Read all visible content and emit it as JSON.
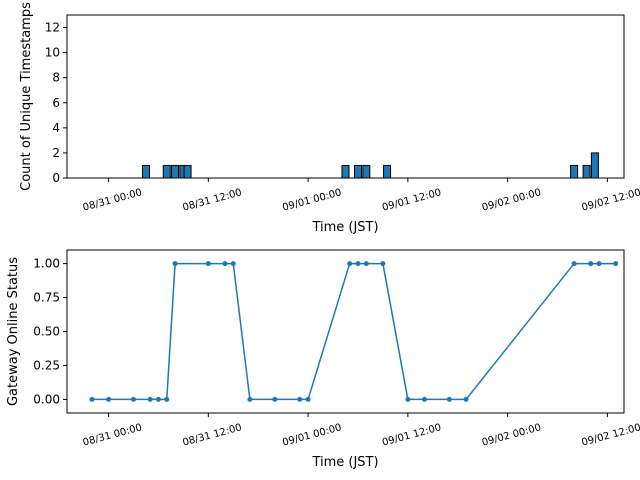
{
  "chart_data": [
    {
      "type": "bar",
      "title": "",
      "xlabel": "Time (JST)",
      "ylabel": "Count of Unique Timestamps",
      "ylim": [
        0,
        13
      ],
      "yticks": [
        "0",
        "2",
        "4",
        "6",
        "8",
        "10",
        "12"
      ],
      "xticks": [
        "08/31 00:00",
        "08/31 12:00",
        "09/01 00:00",
        "09/01 12:00",
        "09/02 00:00",
        "09/02 12:00"
      ],
      "xlim": [
        "2025-08-30 19:00",
        "2025-09-02 14:00"
      ],
      "bar_color": "#1f77b4",
      "bar_edge_color": "#000000",
      "bars": [
        {
          "x": "2025-08-31 04:30",
          "value": 1
        },
        {
          "x": "2025-08-31 07:00",
          "value": 1
        },
        {
          "x": "2025-08-31 08:00",
          "value": 1
        },
        {
          "x": "2025-08-31 09:00",
          "value": 1
        },
        {
          "x": "2025-08-31 09:30",
          "value": 1
        },
        {
          "x": "2025-09-01 04:30",
          "value": 1
        },
        {
          "x": "2025-09-01 06:00",
          "value": 1
        },
        {
          "x": "2025-09-01 07:00",
          "value": 1
        },
        {
          "x": "2025-09-01 09:30",
          "value": 1
        },
        {
          "x": "2025-09-02 08:00",
          "value": 1
        },
        {
          "x": "2025-09-02 09:30",
          "value": 1
        },
        {
          "x": "2025-09-02 10:30",
          "value": 2
        }
      ]
    },
    {
      "type": "line",
      "title": "",
      "xlabel": "Time (JST)",
      "ylabel": "Gateway Online Status",
      "ylim": [
        -0.1,
        1.1
      ],
      "yticks": [
        "0.00",
        "0.25",
        "0.50",
        "0.75",
        "1.00"
      ],
      "xticks": [
        "08/31 00:00",
        "08/31 12:00",
        "09/01 00:00",
        "09/01 12:00",
        "09/02 00:00",
        "09/02 12:00"
      ],
      "xlim": [
        "2025-08-30 19:00",
        "2025-09-02 14:00"
      ],
      "line_color": "#1f77b4",
      "points": [
        {
          "x": "2025-08-30 22:00",
          "y": 0
        },
        {
          "x": "2025-08-31 00:00",
          "y": 0
        },
        {
          "x": "2025-08-31 03:00",
          "y": 0
        },
        {
          "x": "2025-08-31 05:00",
          "y": 0
        },
        {
          "x": "2025-08-31 06:00",
          "y": 0
        },
        {
          "x": "2025-08-31 07:00",
          "y": 0
        },
        {
          "x": "2025-08-31 08:00",
          "y": 1
        },
        {
          "x": "2025-08-31 12:00",
          "y": 1
        },
        {
          "x": "2025-08-31 14:00",
          "y": 1
        },
        {
          "x": "2025-08-31 15:00",
          "y": 1
        },
        {
          "x": "2025-08-31 17:00",
          "y": 0
        },
        {
          "x": "2025-08-31 20:00",
          "y": 0
        },
        {
          "x": "2025-08-31 23:00",
          "y": 0
        },
        {
          "x": "2025-09-01 00:00",
          "y": 0
        },
        {
          "x": "2025-09-01 05:00",
          "y": 1
        },
        {
          "x": "2025-09-01 06:00",
          "y": 1
        },
        {
          "x": "2025-09-01 07:00",
          "y": 1
        },
        {
          "x": "2025-09-01 09:00",
          "y": 1
        },
        {
          "x": "2025-09-01 12:00",
          "y": 0
        },
        {
          "x": "2025-09-01 14:00",
          "y": 0
        },
        {
          "x": "2025-09-01 17:00",
          "y": 0
        },
        {
          "x": "2025-09-01 19:00",
          "y": 0
        },
        {
          "x": "2025-09-02 08:00",
          "y": 1
        },
        {
          "x": "2025-09-02 10:00",
          "y": 1
        },
        {
          "x": "2025-09-02 11:00",
          "y": 1
        },
        {
          "x": "2025-09-02 13:00",
          "y": 1
        }
      ]
    }
  ]
}
